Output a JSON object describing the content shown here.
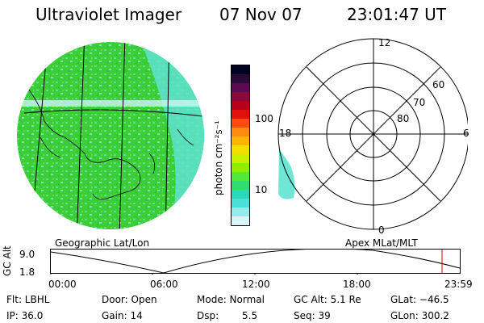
{
  "header": {
    "instrument": "Ultraviolet Imager",
    "date": "07 Nov 07",
    "time": "23:01:47 UT"
  },
  "colors": {
    "background": "#ffffff",
    "image_fill": "#3dce3a",
    "image_speckle": "#5ee2d0",
    "gridline": "#000000",
    "timeline_marker": "#d00000"
  },
  "left_panel": {
    "label": "Geographic Lat/Lon"
  },
  "right_panel": {
    "label": "Apex MLat/MLT",
    "hour_labels": {
      "top": "12",
      "left": "18",
      "right": "6",
      "bottom": "0"
    },
    "lat_labels": [
      "60",
      "70",
      "80"
    ]
  },
  "colorbar": {
    "unit_label": "photon cm⁻²s⁻¹",
    "tick_labels": [
      "100",
      "10"
    ],
    "colors": [
      "#000022",
      "#2a0a36",
      "#5a0a50",
      "#8a0a3a",
      "#b8001a",
      "#e01010",
      "#ff4a10",
      "#ff8a10",
      "#ffb400",
      "#f0e000",
      "#c8f000",
      "#8cf000",
      "#50e83a",
      "#30dc70",
      "#28d8b8",
      "#4ae0d8",
      "#96ecec",
      "#d8f6f6"
    ]
  },
  "timeline": {
    "y_axis_label": "GC Alt",
    "y_ticks": [
      "9.0",
      "1.8"
    ],
    "x_ticks": [
      "00:00",
      "06:00",
      "12:00",
      "18:00",
      "23:59"
    ]
  },
  "info": {
    "flt": "Flt: LBHL",
    "ip": "IP: 36.0",
    "door": "Door: Open",
    "gain": "Gain: 14",
    "mode": "Mode: Normal",
    "dsp": "Dsp:",
    "dsp_val": "5.5",
    "gcalt": "GC Alt: 5.1 Re",
    "seq": "Seq: 39",
    "glat": "GLat: −46.5",
    "glon": "GLon: 300.2"
  }
}
